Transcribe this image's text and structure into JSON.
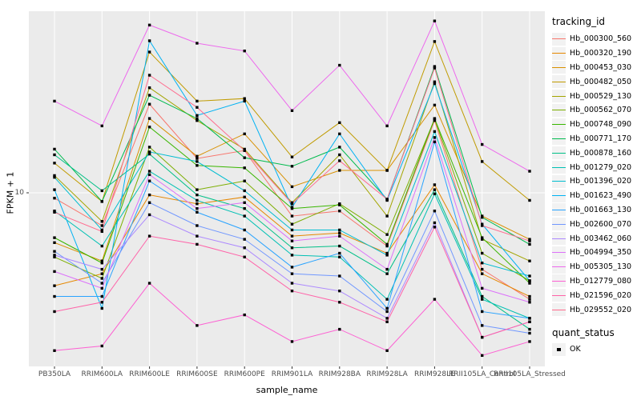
{
  "chart_data": {
    "type": "line",
    "title": "",
    "xlabel": "sample_name",
    "ylabel": "FPKM + 1",
    "y_scale": "log10",
    "y_tick_labels": [
      "10"
    ],
    "ylim_approx": [
      1.9,
      60
    ],
    "grid": "ggplot-gray-panel-white-gridlines",
    "panel_bg": "#ebebeb",
    "grid_color": "#ffffff",
    "tick_label_color": "#4d4d4d",
    "point_shape": "filled-black-square",
    "legend_position": "right",
    "legend_title": "tracking_id",
    "categories": [
      "PB350LA",
      "RRIM600LA",
      "RRIM600LE",
      "RRIM600SE",
      "RRIM600PE",
      "RRIM901LA",
      "RRIM928BA",
      "RRIM928LA",
      "RRIM928LE",
      "RRII105LA_Control",
      "RRII105LA_Stressed"
    ],
    "series": [
      {
        "name": "Hb_000300_560",
        "color": "#F8766D",
        "values": [
          9.5,
          7.3,
          23.4,
          13.9,
          15.0,
          8.0,
          8.4,
          6.0,
          20.0,
          4.8,
          3.6
        ]
      },
      {
        "name": "Hb_000320_190",
        "color": "#E58700",
        "values": [
          4.1,
          4.6,
          9.8,
          9.0,
          9.6,
          6.6,
          6.8,
          5.6,
          10.8,
          4.6,
          3.7
        ]
      },
      {
        "name": "Hb_000453_030",
        "color": "#D89000",
        "values": [
          6.2,
          5.2,
          20.4,
          14.2,
          17.6,
          10.6,
          12.4,
          12.4,
          23.2,
          8.0,
          6.4
        ]
      },
      {
        "name": "Hb_000482_050",
        "color": "#C09B00",
        "values": [
          13.3,
          9.2,
          38.6,
          24.1,
          24.7,
          14.1,
          19.6,
          12.4,
          42.7,
          13.5,
          9.3
        ]
      },
      {
        "name": "Hb_000529_130",
        "color": "#A3A500",
        "values": [
          11.8,
          7.6,
          27.4,
          20.0,
          15.2,
          9.1,
          14.4,
          8.0,
          29.0,
          6.4,
          5.2
        ]
      },
      {
        "name": "Hb_000562_070",
        "color": "#7CAE00",
        "values": [
          5.4,
          4.4,
          15.5,
          10.3,
          11.2,
          7.4,
          9.0,
          6.7,
          20.3,
          5.6,
          4.3
        ]
      },
      {
        "name": "Hb_000748_090",
        "color": "#39B600",
        "values": [
          6.5,
          5.1,
          18.8,
          13.0,
          12.7,
          8.6,
          8.9,
          6.1,
          20.4,
          6.5,
          4.2
        ]
      },
      {
        "name": "Hb_000771_170",
        "color": "#00BB4E",
        "values": [
          15.2,
          9.2,
          25.5,
          20.4,
          14.0,
          12.9,
          15.5,
          9.4,
          33.6,
          7.9,
          6.1
        ]
      },
      {
        "name": "Hb_000878_160",
        "color": "#00C087",
        "values": [
          14.4,
          10.2,
          14.5,
          9.8,
          8.6,
          5.9,
          6.0,
          4.6,
          10.3,
          3.7,
          2.7
        ]
      },
      {
        "name": "Hb_001279_020",
        "color": "#00C0B4",
        "values": [
          8.4,
          6.0,
          12.3,
          9.3,
          8.0,
          5.5,
          5.4,
          3.6,
          9.9,
          3.6,
          3.0
        ]
      },
      {
        "name": "Hb_001396_020",
        "color": "#00BDD0",
        "values": [
          11.6,
          7.0,
          14.8,
          13.5,
          10.2,
          7.0,
          7.0,
          5.5,
          18.0,
          5.1,
          4.5
        ]
      },
      {
        "name": "Hb_001623_490",
        "color": "#00B2F3",
        "values": [
          10.3,
          3.3,
          43.0,
          21.0,
          24.1,
          8.7,
          17.6,
          9.3,
          28.5,
          7.4,
          4.3
        ]
      },
      {
        "name": "Hb_001663_130",
        "color": "#29A3FF",
        "values": [
          3.7,
          3.7,
          11.2,
          8.3,
          7.0,
          4.9,
          5.6,
          3.3,
          16.3,
          3.2,
          3.0
        ]
      },
      {
        "name": "Hb_002600_070",
        "color": "#7097FF",
        "values": [
          5.7,
          4.2,
          9.1,
          7.3,
          6.4,
          4.6,
          4.5,
          3.2,
          8.4,
          2.8,
          2.6
        ]
      },
      {
        "name": "Hb_003462_060",
        "color": "#AC88FF",
        "values": [
          5.5,
          4.8,
          8.1,
          6.6,
          5.9,
          4.2,
          3.9,
          3.0,
          7.5,
          2.5,
          2.9
        ]
      },
      {
        "name": "Hb_004994_350",
        "color": "#DC71FA",
        "values": [
          4.7,
          4.0,
          11.9,
          8.6,
          9.1,
          6.3,
          6.6,
          4.8,
          17.0,
          4.0,
          3.5
        ]
      },
      {
        "name": "Hb_005305_130",
        "color": "#ED68ED",
        "values": [
          24.1,
          19.0,
          50.0,
          42.0,
          39.0,
          22.0,
          34.0,
          19.0,
          52.0,
          15.9,
          12.3
        ]
      },
      {
        "name": "Hb_012779_080",
        "color": "#FD61D3",
        "values": [
          2.2,
          2.3,
          4.2,
          2.8,
          3.1,
          2.4,
          2.7,
          2.2,
          3.6,
          2.1,
          2.4
        ]
      },
      {
        "name": "Hb_021596_020",
        "color": "#FF62A8",
        "values": [
          3.2,
          3.5,
          6.6,
          6.1,
          5.4,
          3.9,
          3.5,
          2.9,
          7.2,
          2.5,
          2.9
        ]
      },
      {
        "name": "Hb_029552_020",
        "color": "#FF6B8E",
        "values": [
          8.3,
          6.9,
          30.9,
          22.7,
          15.0,
          9.0,
          13.6,
          9.4,
          33.1,
          7.3,
          6.3
        ]
      }
    ],
    "quant_legend": {
      "title": "quant_status",
      "items": [
        {
          "label": "OK",
          "shape": "filled-black-square"
        }
      ]
    }
  }
}
